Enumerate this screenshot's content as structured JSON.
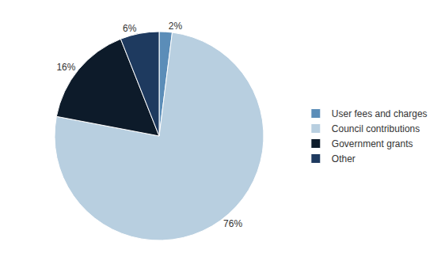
{
  "chart_data": {
    "type": "pie",
    "categories": [
      "User fees and charges",
      "Council contributions",
      "Government grants",
      "Other"
    ],
    "values": [
      2,
      76,
      16,
      6
    ],
    "value_labels": [
      "2%",
      "76%",
      "16%",
      "6%"
    ],
    "colors": [
      "#5b8db8",
      "#b8cfe0",
      "#0d1b2a",
      "#1e3a5f"
    ],
    "data_labels": true,
    "legend": "right"
  }
}
